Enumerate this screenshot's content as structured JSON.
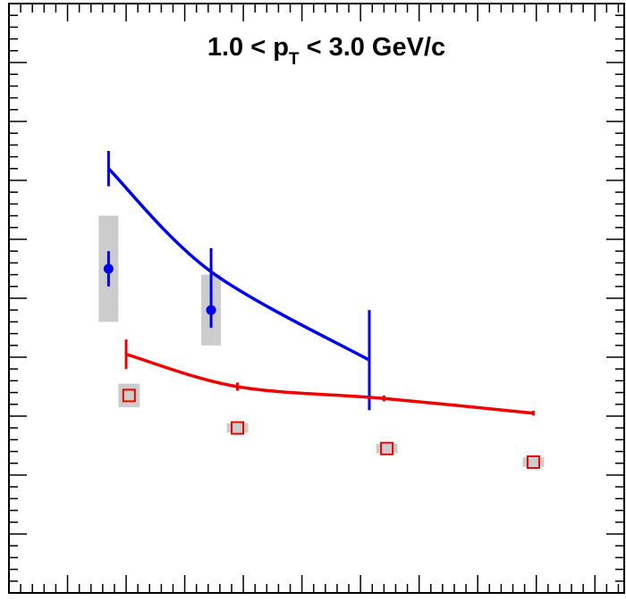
{
  "chart_data": {
    "type": "scatter",
    "title": "1.0 < p",
    "title_subscript": "T",
    "title_suffix": " < 3.0 GeV/c",
    "xlabel": "",
    "ylabel": "",
    "xlim": [
      0,
      10.5
    ],
    "ylim": [
      0,
      10
    ],
    "series": [
      {
        "color": "#0000ee",
        "marker": "filled-circle",
        "points": [
          {
            "x": 1.7,
            "y": 5.5,
            "err": 0.3,
            "sys": 0.9
          },
          {
            "x": 3.45,
            "y": 4.8,
            "err": 0.3,
            "sys": 0.6
          }
        ]
      },
      {
        "color": "#ee0000",
        "marker": "open-square",
        "points": [
          {
            "x": 2.05,
            "y": 3.35,
            "err": 0,
            "sys": 0.2
          },
          {
            "x": 3.9,
            "y": 2.8,
            "err": 0,
            "sys": 0.08
          },
          {
            "x": 6.45,
            "y": 2.45,
            "err": 0,
            "sys": 0.08
          },
          {
            "x": 8.95,
            "y": 2.22,
            "err": 0,
            "sys": 0.08
          }
        ]
      }
    ],
    "curves": [
      {
        "color": "#0000ee",
        "points": [
          {
            "x": 1.7,
            "y": 7.2
          },
          {
            "x": 3.45,
            "y": 5.45
          },
          {
            "x": 6.15,
            "y": 3.95
          }
        ],
        "control_errors": [
          {
            "x": 1.7,
            "y": 7.2,
            "err": 0.3
          },
          {
            "x": 3.45,
            "y": 5.45,
            "err": 0.4
          },
          {
            "x": 6.15,
            "y": 3.95,
            "err": 0.85
          }
        ]
      },
      {
        "color": "#ee0000",
        "points": [
          {
            "x": 2.0,
            "y": 4.05
          },
          {
            "x": 3.9,
            "y": 3.5
          },
          {
            "x": 6.4,
            "y": 3.3
          },
          {
            "x": 8.95,
            "y": 3.05
          }
        ],
        "control_errors": [
          {
            "x": 2.0,
            "y": 4.05,
            "err": 0.25
          },
          {
            "x": 3.9,
            "y": 3.5,
            "err": 0.07
          },
          {
            "x": 6.4,
            "y": 3.3,
            "err": 0.05
          },
          {
            "x": 8.95,
            "y": 3.05,
            "err": 0.04
          }
        ]
      }
    ],
    "grid": false,
    "legend": "none"
  }
}
